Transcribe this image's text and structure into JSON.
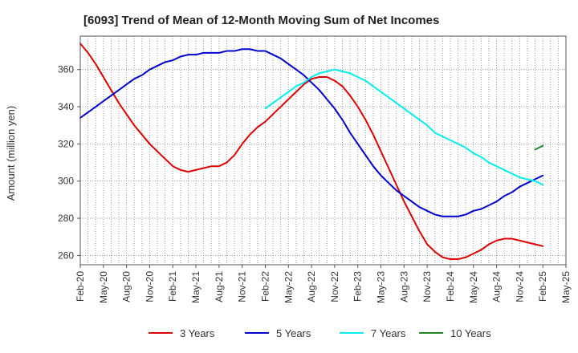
{
  "chart_data": {
    "type": "line",
    "title": "[6093]  Trend of Mean of 12-Month Moving Sum of Net Incomes",
    "xlabel": "",
    "ylabel": "Amount (million yen)",
    "ylim": [
      255,
      378
    ],
    "yticks": [
      260,
      280,
      300,
      320,
      340,
      360
    ],
    "x_start": "2020-02",
    "x_end": "2025-05",
    "xticks": [
      "Feb-20",
      "May-20",
      "Aug-20",
      "Nov-20",
      "Feb-21",
      "May-21",
      "Aug-21",
      "Nov-21",
      "Feb-22",
      "May-22",
      "Aug-22",
      "Nov-22",
      "Feb-23",
      "May-23",
      "Aug-23",
      "Nov-23",
      "Feb-24",
      "May-24",
      "Aug-24",
      "Nov-24",
      "Feb-25",
      "May-25"
    ],
    "grid": true,
    "legend_position": "bottom",
    "series": [
      {
        "name": "3 Years",
        "color": "#dd0000",
        "points": [
          [
            "2020-02",
            374
          ],
          [
            "2020-03",
            369
          ],
          [
            "2020-04",
            363
          ],
          [
            "2020-05",
            356
          ],
          [
            "2020-06",
            349
          ],
          [
            "2020-07",
            342
          ],
          [
            "2020-08",
            336
          ],
          [
            "2020-09",
            330
          ],
          [
            "2020-10",
            325
          ],
          [
            "2020-11",
            320
          ],
          [
            "2020-12",
            316
          ],
          [
            "2021-01",
            312
          ],
          [
            "2021-02",
            308
          ],
          [
            "2021-03",
            306
          ],
          [
            "2021-04",
            305
          ],
          [
            "2021-05",
            306
          ],
          [
            "2021-06",
            307
          ],
          [
            "2021-07",
            308
          ],
          [
            "2021-08",
            308
          ],
          [
            "2021-09",
            310
          ],
          [
            "2021-10",
            314
          ],
          [
            "2021-11",
            320
          ],
          [
            "2021-12",
            325
          ],
          [
            "2022-01",
            329
          ],
          [
            "2022-02",
            332
          ],
          [
            "2022-03",
            336
          ],
          [
            "2022-04",
            340
          ],
          [
            "2022-05",
            344
          ],
          [
            "2022-06",
            348
          ],
          [
            "2022-07",
            352
          ],
          [
            "2022-08",
            355
          ],
          [
            "2022-09",
            356
          ],
          [
            "2022-10",
            356
          ],
          [
            "2022-11",
            354
          ],
          [
            "2022-12",
            351
          ],
          [
            "2023-01",
            346
          ],
          [
            "2023-02",
            340
          ],
          [
            "2023-03",
            333
          ],
          [
            "2023-04",
            325
          ],
          [
            "2023-05",
            316
          ],
          [
            "2023-06",
            307
          ],
          [
            "2023-07",
            298
          ],
          [
            "2023-08",
            289
          ],
          [
            "2023-09",
            281
          ],
          [
            "2023-10",
            273
          ],
          [
            "2023-11",
            266
          ],
          [
            "2023-12",
            262
          ],
          [
            "2024-01",
            259
          ],
          [
            "2024-02",
            258
          ],
          [
            "2024-03",
            258
          ],
          [
            "2024-04",
            259
          ],
          [
            "2024-05",
            261
          ],
          [
            "2024-06",
            263
          ],
          [
            "2024-07",
            266
          ],
          [
            "2024-08",
            268
          ],
          [
            "2024-09",
            269
          ],
          [
            "2024-10",
            269
          ],
          [
            "2024-11",
            268
          ],
          [
            "2024-12",
            267
          ],
          [
            "2025-01",
            266
          ],
          [
            "2025-02",
            265
          ]
        ]
      },
      {
        "name": "5 Years",
        "color": "#0000cc",
        "points": [
          [
            "2020-02",
            334
          ],
          [
            "2020-03",
            337
          ],
          [
            "2020-04",
            340
          ],
          [
            "2020-05",
            343
          ],
          [
            "2020-06",
            346
          ],
          [
            "2020-07",
            349
          ],
          [
            "2020-08",
            352
          ],
          [
            "2020-09",
            355
          ],
          [
            "2020-10",
            357
          ],
          [
            "2020-11",
            360
          ],
          [
            "2020-12",
            362
          ],
          [
            "2021-01",
            364
          ],
          [
            "2021-02",
            365
          ],
          [
            "2021-03",
            367
          ],
          [
            "2021-04",
            368
          ],
          [
            "2021-05",
            368
          ],
          [
            "2021-06",
            369
          ],
          [
            "2021-07",
            369
          ],
          [
            "2021-08",
            369
          ],
          [
            "2021-09",
            370
          ],
          [
            "2021-10",
            370
          ],
          [
            "2021-11",
            371
          ],
          [
            "2021-12",
            371
          ],
          [
            "2022-01",
            370
          ],
          [
            "2022-02",
            370
          ],
          [
            "2022-03",
            368
          ],
          [
            "2022-04",
            366
          ],
          [
            "2022-05",
            363
          ],
          [
            "2022-06",
            360
          ],
          [
            "2022-07",
            357
          ],
          [
            "2022-08",
            353
          ],
          [
            "2022-09",
            349
          ],
          [
            "2022-10",
            344
          ],
          [
            "2022-11",
            339
          ],
          [
            "2022-12",
            333
          ],
          [
            "2023-01",
            326
          ],
          [
            "2023-02",
            320
          ],
          [
            "2023-03",
            314
          ],
          [
            "2023-04",
            308
          ],
          [
            "2023-05",
            303
          ],
          [
            "2023-06",
            299
          ],
          [
            "2023-07",
            295
          ],
          [
            "2023-08",
            292
          ],
          [
            "2023-09",
            289
          ],
          [
            "2023-10",
            286
          ],
          [
            "2023-11",
            284
          ],
          [
            "2023-12",
            282
          ],
          [
            "2024-01",
            281
          ],
          [
            "2024-02",
            281
          ],
          [
            "2024-03",
            281
          ],
          [
            "2024-04",
            282
          ],
          [
            "2024-05",
            284
          ],
          [
            "2024-06",
            285
          ],
          [
            "2024-07",
            287
          ],
          [
            "2024-08",
            289
          ],
          [
            "2024-09",
            292
          ],
          [
            "2024-10",
            294
          ],
          [
            "2024-11",
            297
          ],
          [
            "2024-12",
            299
          ],
          [
            "2025-01",
            301
          ],
          [
            "2025-02",
            303
          ]
        ]
      },
      {
        "name": "7 Years",
        "color": "#00eeee",
        "points": [
          [
            "2022-02",
            339
          ],
          [
            "2022-03",
            342
          ],
          [
            "2022-04",
            345
          ],
          [
            "2022-05",
            348
          ],
          [
            "2022-06",
            351
          ],
          [
            "2022-07",
            353
          ],
          [
            "2022-08",
            356
          ],
          [
            "2022-09",
            358
          ],
          [
            "2022-10",
            359
          ],
          [
            "2022-11",
            360
          ],
          [
            "2022-12",
            359
          ],
          [
            "2023-01",
            358
          ],
          [
            "2023-02",
            356
          ],
          [
            "2023-03",
            354
          ],
          [
            "2023-04",
            351
          ],
          [
            "2023-05",
            348
          ],
          [
            "2023-06",
            345
          ],
          [
            "2023-07",
            342
          ],
          [
            "2023-08",
            339
          ],
          [
            "2023-09",
            336
          ],
          [
            "2023-10",
            333
          ],
          [
            "2023-11",
            330
          ],
          [
            "2023-12",
            326
          ],
          [
            "2024-01",
            324
          ],
          [
            "2024-02",
            322
          ],
          [
            "2024-03",
            320
          ],
          [
            "2024-04",
            318
          ],
          [
            "2024-05",
            315
          ],
          [
            "2024-06",
            313
          ],
          [
            "2024-07",
            310
          ],
          [
            "2024-08",
            308
          ],
          [
            "2024-09",
            306
          ],
          [
            "2024-10",
            304
          ],
          [
            "2024-11",
            302
          ],
          [
            "2024-12",
            301
          ],
          [
            "2025-01",
            300
          ],
          [
            "2025-02",
            298
          ]
        ]
      },
      {
        "name": "10 Years",
        "color": "#228822",
        "points": [
          [
            "2025-01",
            317
          ],
          [
            "2025-02",
            319
          ]
        ]
      }
    ]
  }
}
